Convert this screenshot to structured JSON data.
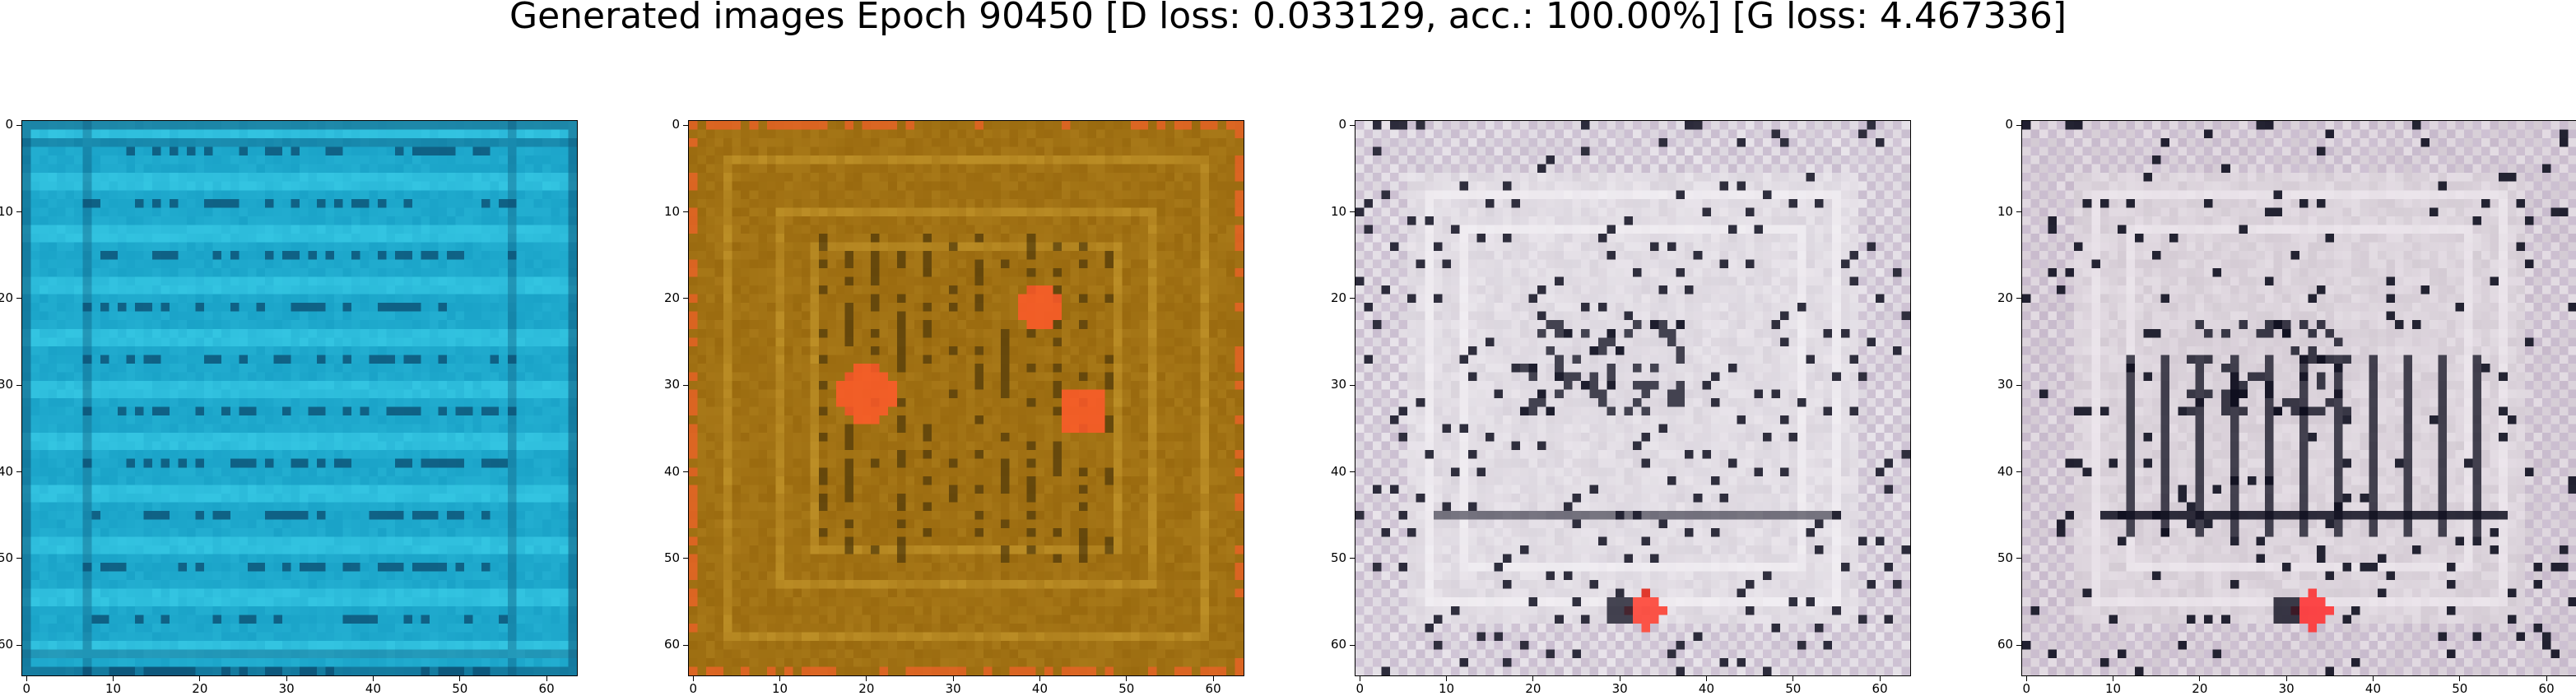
{
  "title": "Generated images Epoch 90450 [D loss: 0.033129, acc.: 100.00%] [G loss: 4.467336]",
  "axis": {
    "x_ticks": [
      "0",
      "10",
      "20",
      "30",
      "40",
      "50",
      "60"
    ],
    "y_ticks": [
      "0",
      "10",
      "20",
      "30",
      "40",
      "50",
      "60"
    ],
    "range": [
      0,
      63
    ]
  },
  "panels": [
    {
      "id": "panel-1",
      "palette": {
        "base": "#1aa3c8",
        "light": "#3cd0ea",
        "dark": "#0b4f73",
        "accent": "#0f7fb0"
      },
      "style": "cyan"
    },
    {
      "id": "panel-2",
      "palette": {
        "base": "#9a6a0f",
        "light": "#c79a2e",
        "dark": "#3c2a05",
        "accent": "#ff5a2a"
      },
      "style": "brown"
    },
    {
      "id": "panel-3",
      "palette": {
        "base": "#d9d3dc",
        "light": "#f4f1f5",
        "dark": "#1a1a2a",
        "accent": "#ff3a2a"
      },
      "style": "pale"
    },
    {
      "id": "panel-4",
      "palette": {
        "base": "#d4cbd4",
        "light": "#efe9ef",
        "dark": "#0e0e1e",
        "accent": "#ff2a2a"
      },
      "style": "pale-bars"
    }
  ]
}
